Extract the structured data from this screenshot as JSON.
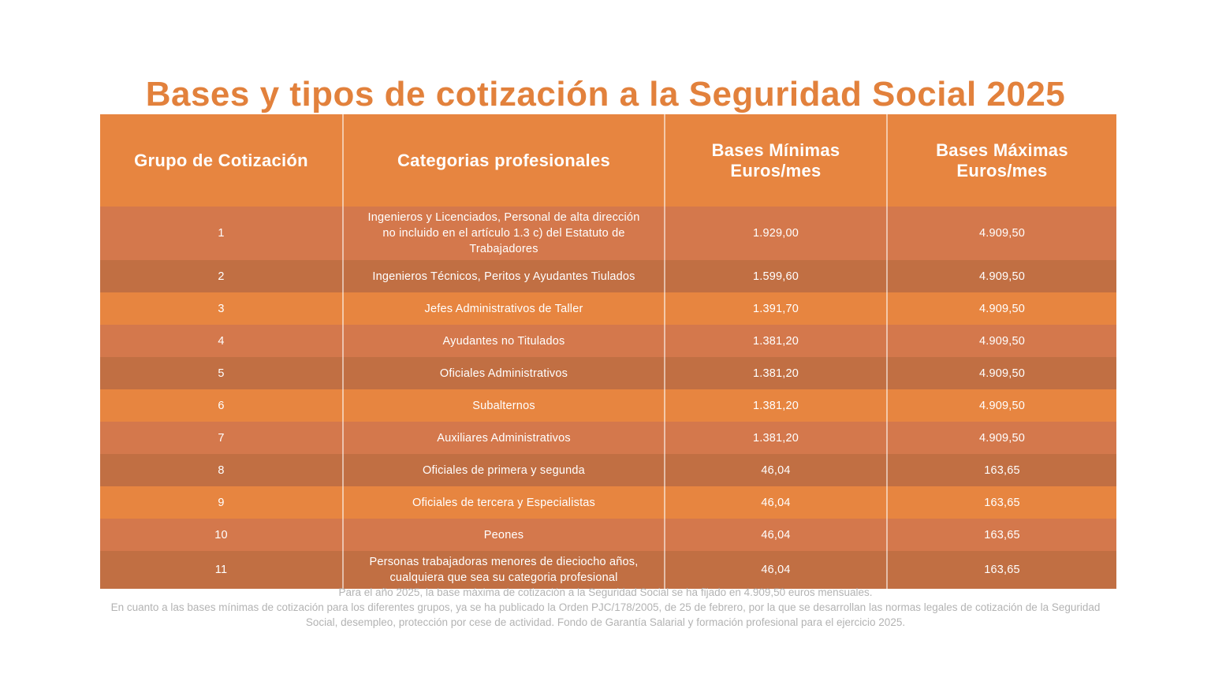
{
  "title": "Bases y tipos de cotización a la Seguridad Social 2025",
  "table": {
    "headers": [
      "Grupo de Cotización",
      "Categorias profesionales",
      "Bases Mínimas\nEuros/mes",
      "Bases Máximas\nEuros/mes"
    ],
    "rows": [
      {
        "grupo": "1",
        "categoria": "Ingenieros y Licenciados, Personal de alta dirección no incluido en el artículo 1.3 c) del Estatuto de Trabajadores",
        "base_minima": "1.929,00",
        "base_maxima": "4.909,50"
      },
      {
        "grupo": "2",
        "categoria": "Ingenieros Técnicos, Peritos y Ayudantes Tiulados",
        "base_minima": "1.599,60",
        "base_maxima": "4.909,50"
      },
      {
        "grupo": "3",
        "categoria": "Jefes Administrativos de Taller",
        "base_minima": "1.391,70",
        "base_maxima": "4.909,50"
      },
      {
        "grupo": "4",
        "categoria": "Ayudantes no Titulados",
        "base_minima": "1.381,20",
        "base_maxima": "4.909,50"
      },
      {
        "grupo": "5",
        "categoria": "Oficiales Administrativos",
        "base_minima": "1.381,20",
        "base_maxima": "4.909,50"
      },
      {
        "grupo": "6",
        "categoria": "Subalternos",
        "base_minima": "1.381,20",
        "base_maxima": "4.909,50"
      },
      {
        "grupo": "7",
        "categoria": "Auxiliares Administrativos",
        "base_minima": "1.381,20",
        "base_maxima": "4.909,50"
      },
      {
        "grupo": "8",
        "categoria": "Oficiales de primera y segunda",
        "base_minima": "46,04",
        "base_maxima": "163,65"
      },
      {
        "grupo": "9",
        "categoria": "Oficiales de tercera y Especialistas",
        "base_minima": "46,04",
        "base_maxima": "163,65"
      },
      {
        "grupo": "10",
        "categoria": "Peones",
        "base_minima": "46,04",
        "base_maxima": "163,65"
      },
      {
        "grupo": "11",
        "categoria": "Personas trabajadoras menores de dieciocho años, cualquiera que sea su categoria profesional",
        "base_minima": "46,04",
        "base_maxima": "163,65"
      }
    ]
  },
  "footer": {
    "line1": "Para el año 2025, la base máxima de cotización a la Seguridad Social se ha fijado en 4.909,50 euros mensuales.",
    "line2": "En cuanto a las bases mínimas de cotización para los diferentes grupos, ya se ha publicado la Orden PJC/178/2005, de 25 de febrero, por la que se desarrollan las normas legales de cotización de la Seguridad Social, desempleo, protección por cese de actividad. Fondo de Garantía Salarial y formación profesional para el ejercicio 2025."
  },
  "colors": {
    "title": "#E2813C",
    "header_bg": "#E78540",
    "row_bright": "#E78540",
    "row_medium": "#D4784C",
    "row_dark": "#C16F43",
    "cell_text": "#FFFFFF",
    "footer_text": "#B3B3B3"
  }
}
